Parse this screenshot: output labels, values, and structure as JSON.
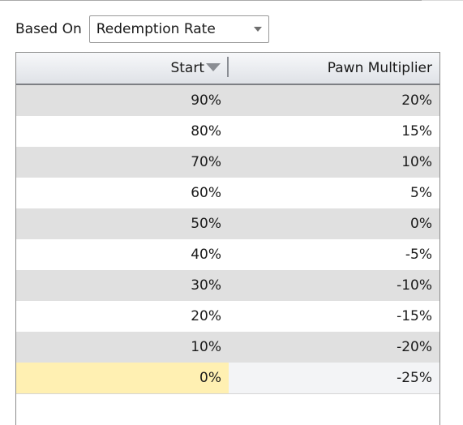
{
  "based_on": {
    "label": "Based On",
    "selected_value": "Redemption Rate"
  },
  "grid": {
    "columns": [
      {
        "label": "Start",
        "sort": "descending"
      },
      {
        "label": "Pawn Multiplier"
      }
    ],
    "rows": [
      {
        "start": "90%",
        "pawn_multiplier": "20%"
      },
      {
        "start": "80%",
        "pawn_multiplier": "15%"
      },
      {
        "start": "70%",
        "pawn_multiplier": "10%"
      },
      {
        "start": "60%",
        "pawn_multiplier": "5%"
      },
      {
        "start": "50%",
        "pawn_multiplier": "0%"
      },
      {
        "start": "40%",
        "pawn_multiplier": "-5%"
      },
      {
        "start": "30%",
        "pawn_multiplier": "-10%"
      },
      {
        "start": "20%",
        "pawn_multiplier": "-15%"
      },
      {
        "start": "10%",
        "pawn_multiplier": "-20%"
      },
      {
        "start": "0%",
        "pawn_multiplier": "-25%"
      }
    ],
    "selected_row_index": 9,
    "colors": {
      "alternate_row": "#e0e0e0",
      "selected_cell": "#fff0b2"
    }
  }
}
